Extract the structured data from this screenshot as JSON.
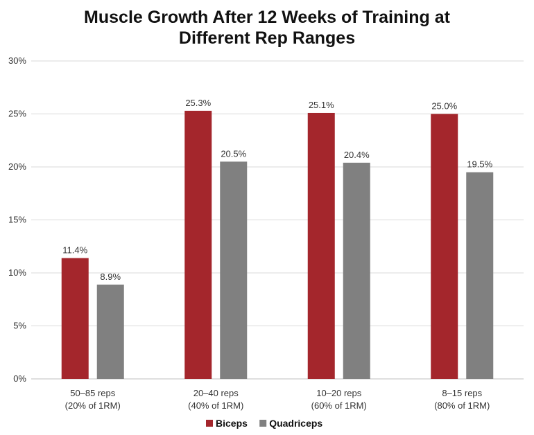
{
  "chart_data": {
    "type": "bar",
    "title_lines": [
      "Muscle Growth After 12 Weeks of Training at",
      "Different Rep Ranges"
    ],
    "categories": [
      [
        "50–85 reps",
        "(20% of 1RM)"
      ],
      [
        "20–40 reps",
        "(40% of 1RM)"
      ],
      [
        "10–20 reps",
        "(60% of 1RM)"
      ],
      [
        "8–15 reps",
        "(80% of 1RM)"
      ]
    ],
    "series": [
      {
        "name": "Biceps",
        "color": "#A4262C",
        "values": [
          11.4,
          25.3,
          25.1,
          25.0
        ],
        "labels": [
          "11.4%",
          "25.3%",
          "25.1%",
          "25.0%"
        ]
      },
      {
        "name": "Quadriceps",
        "color": "#808080",
        "values": [
          8.9,
          20.5,
          20.4,
          19.5
        ],
        "labels": [
          "8.9%",
          "20.5%",
          "20.4%",
          "19.5%"
        ]
      }
    ],
    "ylim": [
      0,
      30
    ],
    "yticks": [
      0,
      5,
      10,
      15,
      20,
      25,
      30
    ],
    "ytick_labels": [
      "0%",
      "5%",
      "10%",
      "15%",
      "20%",
      "25%",
      "30%"
    ],
    "xlabel": "",
    "ylabel": "",
    "grid": true,
    "legend_position": "bottom"
  }
}
